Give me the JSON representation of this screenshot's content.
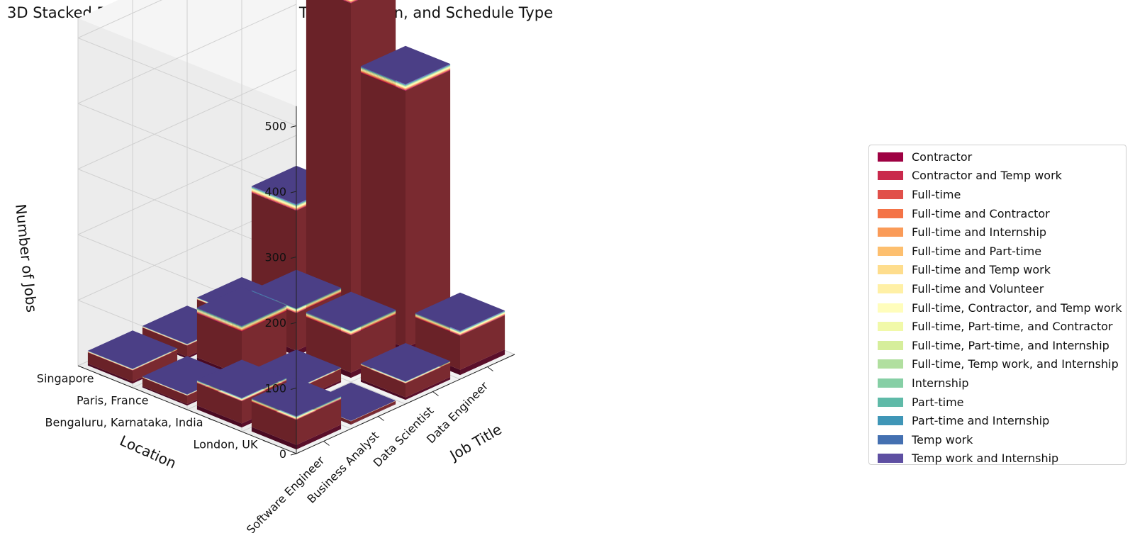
{
  "chart_data": {
    "type": "bar",
    "title": "3D Stacked Bar Chart of Job Counts by Title, Location, and Schedule Type",
    "xlabel": "Job Title",
    "ylabel": "Location",
    "zlabel": "Number of Jobs",
    "x_categories": [
      "Software Engineer",
      "Business Analyst",
      "Data Scientist",
      "Data Engineer"
    ],
    "y_categories": [
      "London, UK",
      "Bengaluru, Karnataka, India",
      "Paris, France",
      "Singapore"
    ],
    "z_ticks": [
      0,
      100,
      200,
      300,
      400,
      500
    ],
    "zlim": [
      0,
      530
    ],
    "grid": true,
    "legend_position": "right",
    "series": [
      {
        "name": "Contractor",
        "color": "#9e0142"
      },
      {
        "name": "Contractor and Temp work",
        "color": "#c9294c"
      },
      {
        "name": "Full-time",
        "color": "#e1504a"
      },
      {
        "name": "Full-time and Contractor",
        "color": "#f47346"
      },
      {
        "name": "Full-time and Internship",
        "color": "#fa9b58"
      },
      {
        "name": "Full-time and Part-time",
        "color": "#fdbf6f"
      },
      {
        "name": "Full-time and Temp work",
        "color": "#fedd8d"
      },
      {
        "name": "Full-time and Volunteer",
        "color": "#fff0a6"
      },
      {
        "name": "Full-time, Contractor, and Temp work",
        "color": "#fffdbc"
      },
      {
        "name": "Full-time, Part-time, and Contractor",
        "color": "#f1f9a9"
      },
      {
        "name": "Full-time, Part-time, and Internship",
        "color": "#d6ee9b"
      },
      {
        "name": "Full-time, Temp work, and Internship",
        "color": "#b1df9f"
      },
      {
        "name": "Internship",
        "color": "#86cfa5"
      },
      {
        "name": "Part-time",
        "color": "#5fbaa8"
      },
      {
        "name": "Part-time and Internship",
        "color": "#3f96b7"
      },
      {
        "name": "Temp work",
        "color": "#4470b1"
      },
      {
        "name": "Temp work and Internship",
        "color": "#5e4fa2"
      }
    ],
    "totals_by_title_location": {
      "Software Engineer": {
        "London, UK": 45,
        "Bengaluru, Karnataka, India": 40,
        "Paris, France": 15,
        "Singapore": 20
      },
      "Business Analyst": {
        "London, UK": 5,
        "Bengaluru, Karnataka, India": 20,
        "Paris, France": 75,
        "Singapore": 20
      },
      "Data Scientist": {
        "London, UK": 25,
        "Bengaluru, Karnataka, India": 65,
        "Paris, France": 65,
        "Singapore": 25
      },
      "Data Engineer": {
        "London, UK": 60,
        "Bengaluru, Karnataka, India": 400,
        "Paris, France": 500,
        "Singapore": 150
      }
    }
  }
}
